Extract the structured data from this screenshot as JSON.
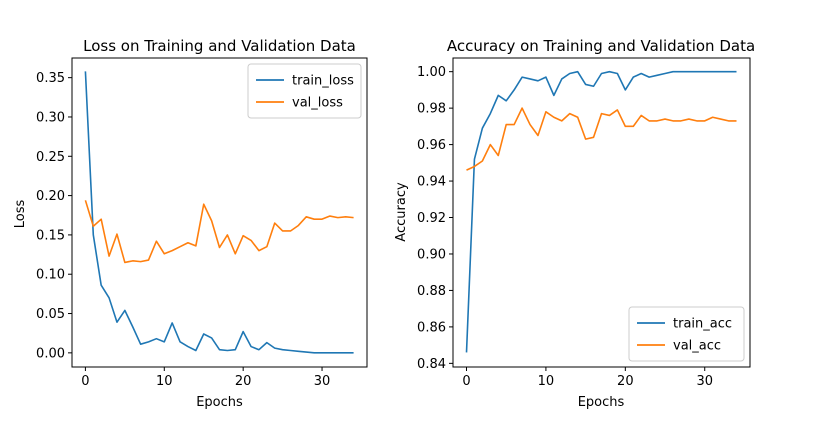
{
  "chart_data": [
    {
      "type": "line",
      "title": "Loss on Training and Validation Data",
      "xlabel": "Epochs",
      "ylabel": "Loss",
      "xlim": [
        -1.7,
        35.7
      ],
      "ylim": [
        -0.018,
        0.375
      ],
      "xticks": [
        0,
        10,
        20,
        30
      ],
      "yticks": [
        0.0,
        0.05,
        0.1,
        0.15,
        0.2,
        0.25,
        0.3,
        0.35
      ],
      "ytick_labels": [
        "0.00",
        "0.05",
        "0.10",
        "0.15",
        "0.20",
        "0.25",
        "0.30",
        "0.35"
      ],
      "grid": false,
      "legend": "top-right",
      "series": [
        {
          "name": "train_loss",
          "color": "#1f77b4",
          "values": [
            0.358,
            0.15,
            0.086,
            0.07,
            0.039,
            0.054,
            0.033,
            0.011,
            0.014,
            0.018,
            0.014,
            0.038,
            0.014,
            0.008,
            0.003,
            0.024,
            0.019,
            0.004,
            0.003,
            0.004,
            0.027,
            0.008,
            0.004,
            0.013,
            0.006,
            0.004,
            0.003,
            0.002,
            0.001,
            0.0,
            0.0,
            0.0,
            0.0,
            0.0,
            0.0
          ]
        },
        {
          "name": "val_loss",
          "color": "#ff7f0e",
          "values": [
            0.194,
            0.161,
            0.17,
            0.123,
            0.151,
            0.115,
            0.117,
            0.116,
            0.118,
            0.142,
            0.126,
            0.13,
            0.135,
            0.14,
            0.136,
            0.189,
            0.168,
            0.134,
            0.15,
            0.126,
            0.149,
            0.143,
            0.13,
            0.135,
            0.165,
            0.155,
            0.155,
            0.162,
            0.173,
            0.17,
            0.17,
            0.174,
            0.172,
            0.173,
            0.172
          ]
        }
      ]
    },
    {
      "type": "line",
      "title": "Accuracy  on Training and Validation Data",
      "xlabel": "Epochs",
      "ylabel": "Accuracy",
      "xlim": [
        -1.7,
        35.7
      ],
      "ylim": [
        0.838,
        1.0075
      ],
      "xticks": [
        0,
        10,
        20,
        30
      ],
      "yticks": [
        0.84,
        0.86,
        0.88,
        0.9,
        0.92,
        0.94,
        0.96,
        0.98,
        1.0
      ],
      "ytick_labels": [
        "0.84",
        "0.86",
        "0.88",
        "0.90",
        "0.92",
        "0.94",
        "0.96",
        "0.98",
        "1.00"
      ],
      "grid": false,
      "legend": "bottom-right",
      "series": [
        {
          "name": "train_acc",
          "color": "#1f77b4",
          "values": [
            0.846,
            0.952,
            0.969,
            0.977,
            0.987,
            0.984,
            0.99,
            0.997,
            0.996,
            0.995,
            0.997,
            0.987,
            0.996,
            0.999,
            1.0,
            0.993,
            0.992,
            0.999,
            1.0,
            0.999,
            0.99,
            0.997,
            0.999,
            0.997,
            0.998,
            0.999,
            1.0,
            1.0,
            1.0,
            1.0,
            1.0,
            1.0,
            1.0,
            1.0,
            1.0
          ]
        },
        {
          "name": "val_acc",
          "color": "#ff7f0e",
          "values": [
            0.946,
            0.948,
            0.951,
            0.96,
            0.954,
            0.971,
            0.971,
            0.98,
            0.971,
            0.965,
            0.978,
            0.975,
            0.973,
            0.977,
            0.975,
            0.963,
            0.964,
            0.977,
            0.976,
            0.979,
            0.97,
            0.97,
            0.976,
            0.973,
            0.973,
            0.974,
            0.973,
            0.973,
            0.974,
            0.973,
            0.973,
            0.975,
            0.974,
            0.973,
            0.973
          ]
        }
      ]
    }
  ]
}
